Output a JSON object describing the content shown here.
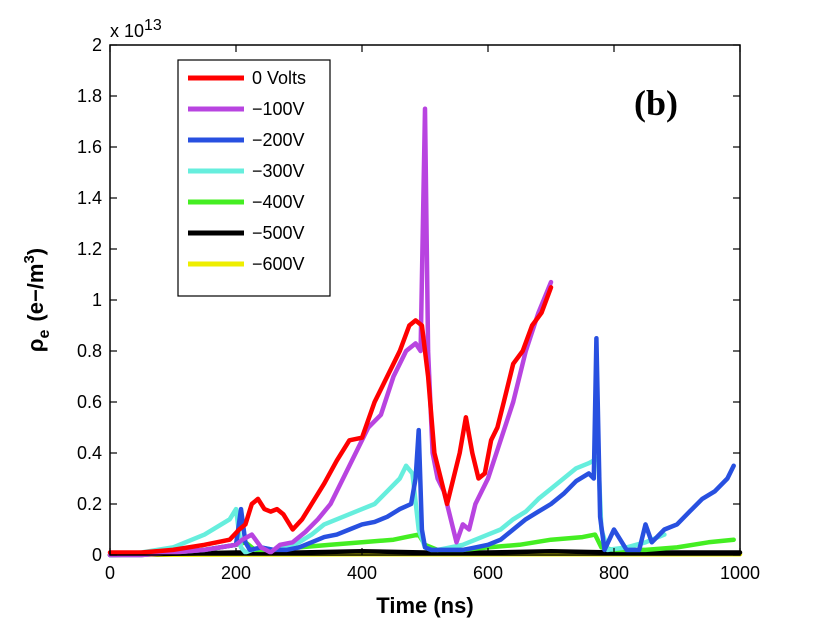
{
  "chart_data": {
    "type": "line",
    "panel_label": "(b)",
    "xlabel": "Time (ns)",
    "ylabel_main": "ρ",
    "ylabel_sub": "e",
    "ylabel_units": "(e−/m",
    "ylabel_units_sup": "3",
    "ylabel_units_close": ")",
    "y_multiplier_base": "x 10",
    "y_multiplier_exp": "13",
    "xlim": [
      0,
      1000
    ],
    "ylim": [
      0,
      2
    ],
    "x_ticks": [
      0,
      200,
      400,
      600,
      800,
      1000
    ],
    "x_tick_labels": [
      "0",
      "200",
      "400",
      "600",
      "800",
      "1000"
    ],
    "y_ticks": [
      0,
      0.2,
      0.4,
      0.6,
      0.8,
      1,
      1.2,
      1.4,
      1.6,
      1.8,
      2
    ],
    "y_tick_labels": [
      "0",
      "0.2",
      "0.4",
      "0.6",
      "0.8",
      "1",
      "1.2",
      "1.4",
      "1.6",
      "1.8",
      "2"
    ],
    "series": [
      {
        "name": "0 Volts",
        "color": "#ff0000",
        "x": [
          0,
          50,
          100,
          150,
          190,
          205,
          215,
          225,
          235,
          245,
          255,
          265,
          275,
          290,
          305,
          320,
          340,
          360,
          380,
          400,
          420,
          440,
          460,
          475,
          485,
          495,
          505,
          515,
          525,
          535,
          545,
          555,
          565,
          575,
          585,
          595,
          605,
          615,
          625,
          640,
          655,
          670,
          685,
          700
        ],
        "y": [
          0.01,
          0.01,
          0.02,
          0.04,
          0.06,
          0.1,
          0.12,
          0.2,
          0.22,
          0.18,
          0.17,
          0.18,
          0.16,
          0.1,
          0.14,
          0.2,
          0.28,
          0.37,
          0.45,
          0.46,
          0.6,
          0.7,
          0.8,
          0.9,
          0.92,
          0.9,
          0.7,
          0.4,
          0.3,
          0.2,
          0.3,
          0.4,
          0.54,
          0.4,
          0.3,
          0.32,
          0.45,
          0.5,
          0.6,
          0.75,
          0.8,
          0.9,
          0.95,
          1.05
        ]
      },
      {
        "name": "−100V",
        "color": "#b844e0",
        "x": [
          0,
          50,
          100,
          150,
          200,
          210,
          225,
          240,
          255,
          270,
          290,
          310,
          330,
          350,
          370,
          390,
          410,
          430,
          450,
          470,
          485,
          493,
          500,
          505,
          512,
          520,
          530,
          540,
          550,
          560,
          570,
          580,
          600,
          620,
          640,
          660,
          680,
          700
        ],
        "y": [
          0.0,
          0.0,
          0.01,
          0.02,
          0.04,
          0.06,
          0.08,
          0.03,
          0.01,
          0.04,
          0.05,
          0.09,
          0.14,
          0.2,
          0.3,
          0.4,
          0.5,
          0.55,
          0.7,
          0.8,
          0.83,
          0.8,
          1.75,
          0.8,
          0.4,
          0.3,
          0.25,
          0.15,
          0.05,
          0.12,
          0.1,
          0.2,
          0.3,
          0.45,
          0.6,
          0.8,
          0.95,
          1.07
        ]
      },
      {
        "name": "−200V",
        "color": "#2850e0",
        "x": [
          0,
          50,
          100,
          150,
          200,
          208,
          215,
          222,
          240,
          260,
          280,
          300,
          320,
          340,
          360,
          380,
          400,
          420,
          440,
          460,
          478,
          485,
          490,
          495,
          500,
          510,
          520,
          540,
          560,
          580,
          600,
          620,
          640,
          660,
          680,
          700,
          720,
          740,
          760,
          768,
          772,
          778,
          785,
          800,
          820,
          840,
          850,
          860,
          880,
          900,
          920,
          940,
          960,
          980,
          990
        ],
        "y": [
          0.0,
          0.0,
          0.01,
          0.02,
          0.04,
          0.18,
          0.05,
          0.02,
          0.03,
          0.02,
          0.02,
          0.03,
          0.05,
          0.07,
          0.08,
          0.1,
          0.12,
          0.13,
          0.15,
          0.18,
          0.2,
          0.3,
          0.49,
          0.1,
          0.03,
          0.02,
          0.02,
          0.02,
          0.02,
          0.03,
          0.04,
          0.06,
          0.1,
          0.14,
          0.17,
          0.2,
          0.24,
          0.29,
          0.32,
          0.3,
          0.85,
          0.15,
          0.02,
          0.1,
          0.02,
          0.02,
          0.12,
          0.05,
          0.1,
          0.12,
          0.17,
          0.22,
          0.25,
          0.3,
          0.35
        ]
      },
      {
        "name": "−300V",
        "color": "#66eedd",
        "x": [
          0,
          50,
          100,
          150,
          190,
          200,
          208,
          215,
          225,
          240,
          260,
          280,
          300,
          320,
          340,
          360,
          380,
          400,
          420,
          440,
          460,
          470,
          480,
          490,
          500,
          510,
          520,
          540,
          560,
          580,
          600,
          620,
          640,
          660,
          680,
          700,
          720,
          740,
          760,
          775,
          780,
          790,
          820,
          850,
          880
        ],
        "y": [
          0.0,
          0.01,
          0.03,
          0.08,
          0.14,
          0.18,
          0.03,
          0.01,
          0.02,
          0.03,
          0.02,
          0.03,
          0.05,
          0.08,
          0.12,
          0.14,
          0.16,
          0.18,
          0.2,
          0.25,
          0.3,
          0.35,
          0.32,
          0.1,
          0.03,
          0.02,
          0.02,
          0.03,
          0.04,
          0.06,
          0.08,
          0.1,
          0.14,
          0.17,
          0.22,
          0.26,
          0.3,
          0.34,
          0.36,
          0.38,
          0.1,
          0.02,
          0.03,
          0.05,
          0.08
        ]
      },
      {
        "name": "−400V",
        "color": "#44ee22",
        "x": [
          0,
          100,
          150,
          200,
          215,
          230,
          260,
          300,
          350,
          400,
          450,
          470,
          490,
          500,
          520,
          560,
          600,
          650,
          700,
          750,
          770,
          780,
          800,
          850,
          900,
          950,
          990
        ],
        "y": [
          0.0,
          0.01,
          0.02,
          0.04,
          0.05,
          0.02,
          0.02,
          0.03,
          0.04,
          0.05,
          0.06,
          0.07,
          0.08,
          0.04,
          0.02,
          0.02,
          0.03,
          0.04,
          0.06,
          0.07,
          0.08,
          0.03,
          0.02,
          0.02,
          0.03,
          0.05,
          0.06
        ]
      },
      {
        "name": "−500V",
        "color": "#000000",
        "x": [
          0,
          100,
          200,
          300,
          400,
          500,
          600,
          700,
          800,
          900,
          1000
        ],
        "y": [
          0.0,
          0.005,
          0.01,
          0.01,
          0.015,
          0.01,
          0.01,
          0.015,
          0.01,
          0.01,
          0.01
        ]
      },
      {
        "name": "−600V",
        "color": "#eeee00",
        "x": [
          0,
          200,
          400,
          600,
          800,
          1000
        ],
        "y": [
          0.0,
          0.002,
          0.003,
          0.003,
          0.003,
          0.003
        ]
      }
    ]
  }
}
